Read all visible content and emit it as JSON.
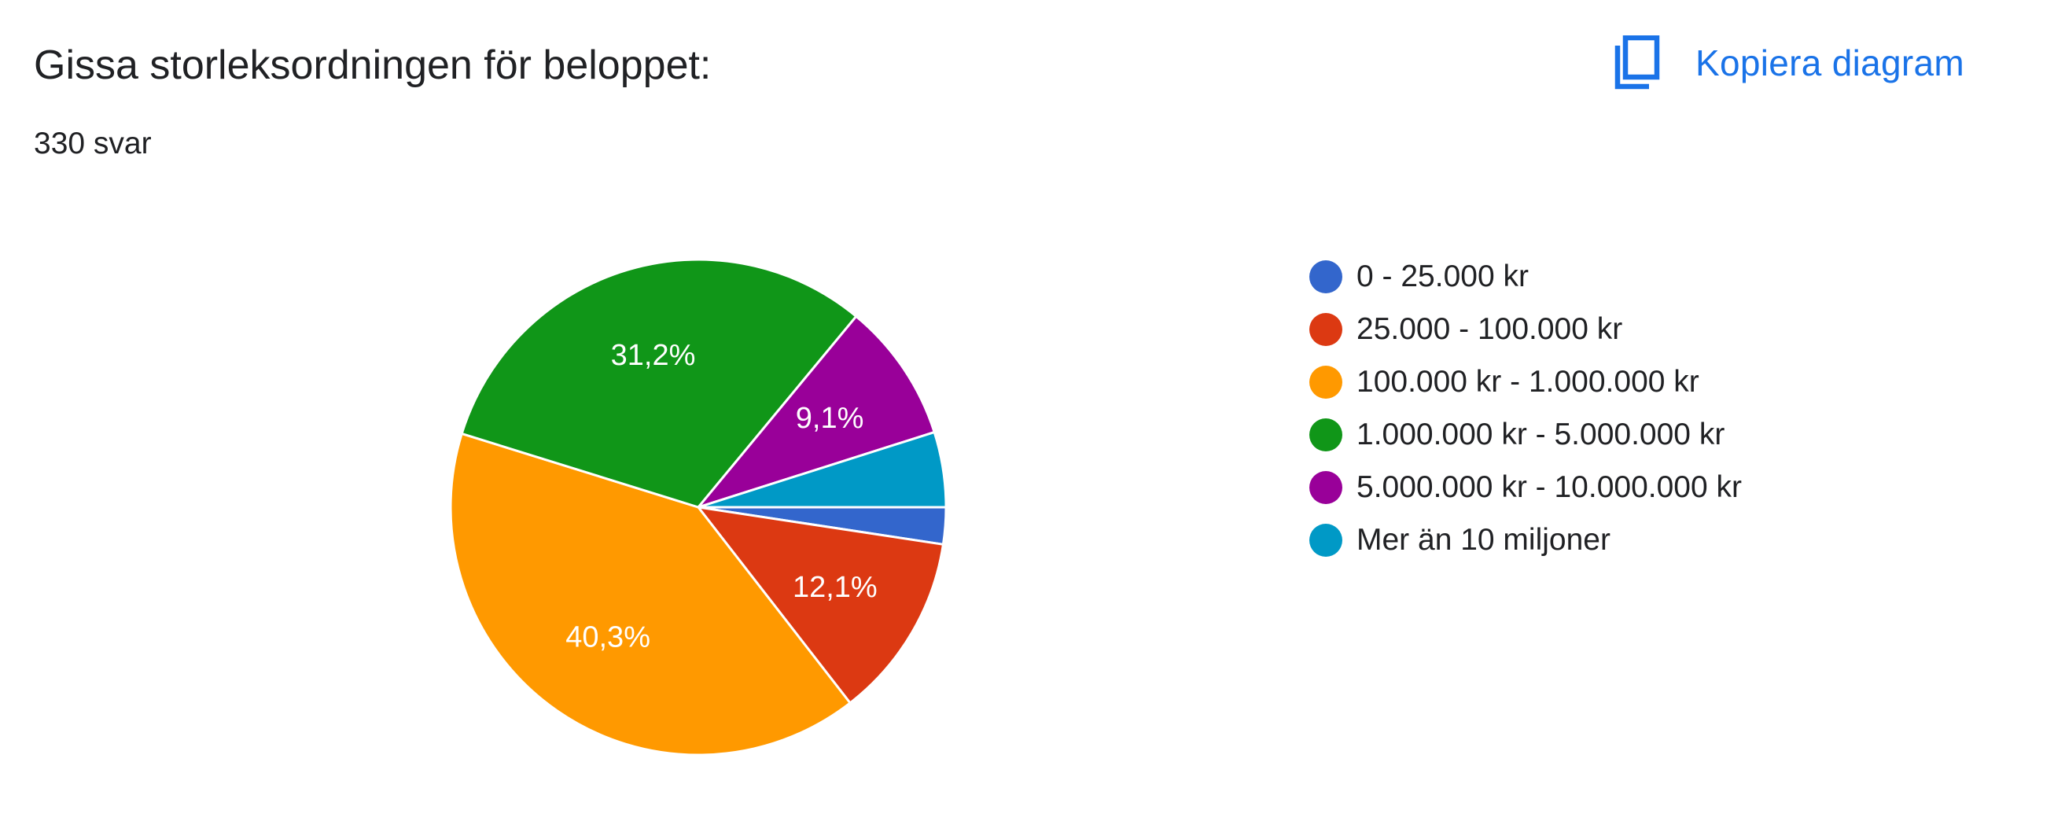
{
  "header": {
    "title": "Gissa storleksordningen för beloppet:",
    "response_count": "330 svar",
    "copy_button_label": "Kopiera diagram",
    "copy_icon": "copy-icon",
    "accent_color": "#1a73e8"
  },
  "chart_data": {
    "type": "pie",
    "title": "Gissa storleksordningen för beloppet:",
    "legend_position": "right",
    "slices": [
      {
        "label": "0 - 25.000 kr",
        "value": 2.4,
        "value_label": "",
        "color": "#3366cc"
      },
      {
        "label": "25.000 - 100.000 kr",
        "value": 12.1,
        "value_label": "12,1%",
        "color": "#dc3912"
      },
      {
        "label": "100.000 kr - 1.000.000 kr",
        "value": 40.3,
        "value_label": "40,3%",
        "color": "#ff9900"
      },
      {
        "label": "1.000.000 kr - 5.000.000 kr",
        "value": 31.2,
        "value_label": "31,2%",
        "color": "#109618"
      },
      {
        "label": "5.000.000 kr - 10.000.000 kr",
        "value": 9.1,
        "value_label": "9,1%",
        "color": "#990099"
      },
      {
        "label": "Mer än 10 miljoner",
        "value": 4.9,
        "value_label": "",
        "color": "#0099c6"
      }
    ]
  }
}
